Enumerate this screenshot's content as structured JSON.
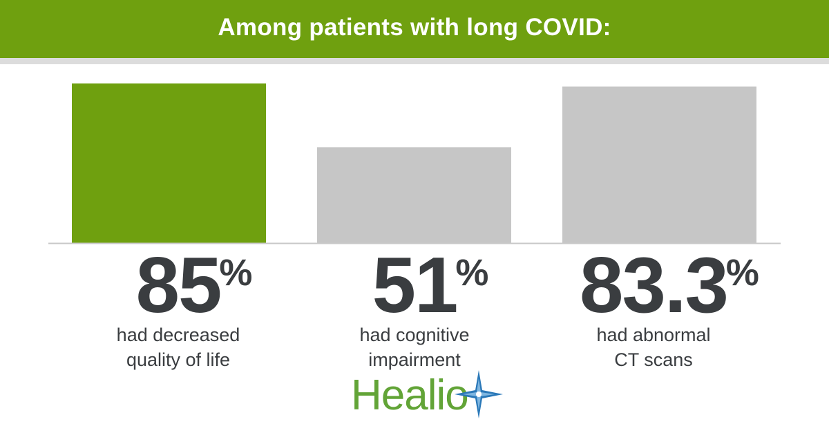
{
  "header": {
    "title": "Among patients with long COVID:"
  },
  "chart_data": {
    "type": "bar",
    "title": "Among patients with long COVID:",
    "ylim": [
      0,
      100
    ],
    "grid": false,
    "categories": [
      "had decreased quality of life",
      "had cognitive impairment",
      "had abnormal CT scans"
    ],
    "values": [
      85,
      51,
      83.3
    ],
    "bar_colors": [
      "#6fa00f",
      "#c6c6c6",
      "#c6c6c6"
    ],
    "baseline_color": "#c8c8c8",
    "stats": [
      {
        "value": "85",
        "unit": "%",
        "label_line1": "had decreased",
        "label_line2": "quality of life"
      },
      {
        "value": "51",
        "unit": "%",
        "label_line1": "had cognitive",
        "label_line2": "impairment"
      },
      {
        "value": "83.3",
        "unit": "%",
        "label_line1": "had abnormal",
        "label_line2": "CT scans"
      }
    ]
  },
  "brand": {
    "name": "Healio",
    "text_color": "#62a437",
    "star_colors": [
      "#2a78b8",
      "#7fb6e0"
    ]
  },
  "colors": {
    "accent": "#6fa00f",
    "text": "#3a3d40",
    "header_rule": "#dcdcdc"
  }
}
